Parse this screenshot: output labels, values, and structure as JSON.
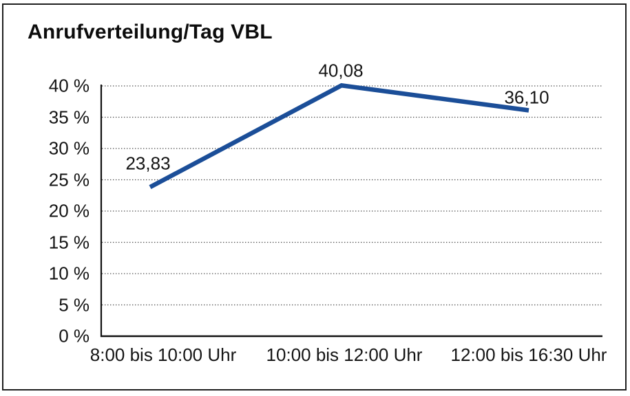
{
  "window": {
    "background_color": "#ffffff",
    "frame_color": "#1f1f1f"
  },
  "chart_data": {
    "type": "line",
    "title": "Anrufverteilung/Tag VBL",
    "categories": [
      "8:00 bis 10:00 Uhr",
      "10:00 bis 12:00 Uhr",
      "12:00 bis 16:30 Uhr"
    ],
    "values": [
      23.83,
      40.08,
      36.1
    ],
    "point_labels": [
      "23,83",
      "40,08",
      "36,10"
    ],
    "xlabel": "",
    "ylabel": "",
    "ylim": [
      0,
      40
    ],
    "yticks": [
      0,
      5,
      10,
      15,
      20,
      25,
      30,
      35,
      40
    ],
    "ytick_labels": [
      "0 %",
      "5 %",
      "10 %",
      "15 %",
      "20 %",
      "25 %",
      "30 %",
      "35 %",
      "40 %"
    ],
    "grid": "horizontal-dotted",
    "legend": "none",
    "line_color": "#1b4e98",
    "gridline_color": "#4a4a4a",
    "axis_color": "#111111"
  }
}
